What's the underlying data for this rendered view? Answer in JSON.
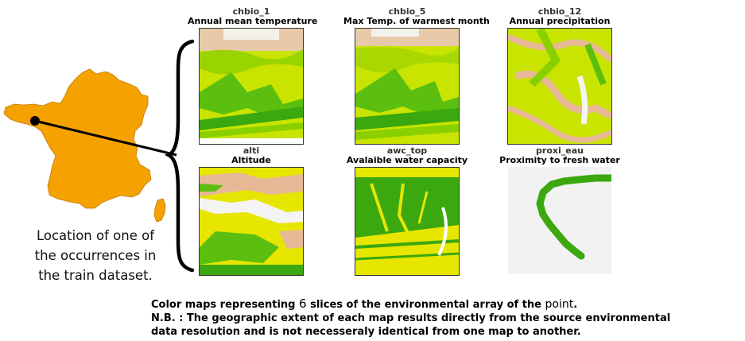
{
  "location_caption": {
    "line1": "Location of one of",
    "line2": "the occurrences in",
    "line3": "the train dataset."
  },
  "maps": [
    {
      "code": "chbio_1",
      "title": "Annual mean temperature"
    },
    {
      "code": "chbio_5",
      "title": "Max Temp. of warmest month"
    },
    {
      "code": "chbio_12",
      "title": "Annual precipitation"
    },
    {
      "code": "alti",
      "title": "Altitude"
    },
    {
      "code": "awc_top",
      "title": "Avalaible water capacity"
    },
    {
      "code": "proxi_eau",
      "title": "Proximity to fresh water"
    }
  ],
  "footer": {
    "line1_a": "Color maps representing ",
    "line1_num": "6",
    "line1_b": " slices of the environmental array of the ",
    "line1_c": "point",
    "line1_d": ".",
    "line2": "N.B. : The geographic extent of each map results directly from the source environmental",
    "line3": "data resolution and is not necesseraly identical from one map to another."
  },
  "colors": {
    "france_fill": "#f5a200",
    "green_dark": "#3aa80e",
    "green_light": "#c8e400",
    "yellow": "#e6e600",
    "tan": "#e8b896",
    "white_peak": "#f4f4f4"
  }
}
